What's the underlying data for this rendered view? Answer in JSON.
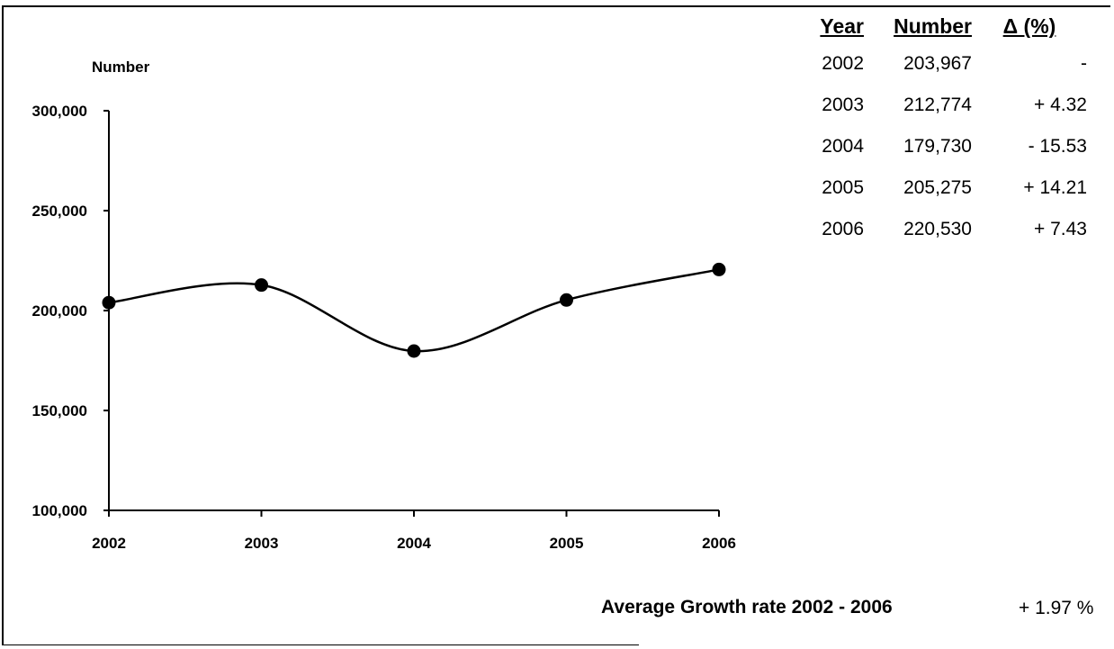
{
  "chart_data": {
    "type": "line",
    "ylabel": "Number",
    "xlabel": "",
    "title": "",
    "x": [
      "2002",
      "2003",
      "2004",
      "2005",
      "2006"
    ],
    "series": [
      {
        "values": [
          203967,
          212774,
          179730,
          205275,
          220530
        ]
      }
    ],
    "ylim": [
      100000,
      300000
    ],
    "yticks": [
      100000,
      150000,
      200000,
      250000,
      300000
    ],
    "ytick_labels": [
      "100,000",
      "150,000",
      "200,000",
      "250,000",
      "300,000"
    ],
    "smooth": true,
    "grid": false,
    "legend": "none",
    "color": "#000000"
  },
  "table": {
    "headers": {
      "year": "Year",
      "number": "Number",
      "delta": "Δ (%)"
    },
    "rows": [
      {
        "year": "2002",
        "number": "203,967",
        "delta": "-"
      },
      {
        "year": "2003",
        "number": "212,774",
        "delta": "+ 4.32"
      },
      {
        "year": "2004",
        "number": "179,730",
        "delta": "- 15.53"
      },
      {
        "year": "2005",
        "number": "205,275",
        "delta": "+ 14.21"
      },
      {
        "year": "2006",
        "number": "220,530",
        "delta": "+ 7.43"
      }
    ]
  },
  "average": {
    "label": "Average Growth rate 2002 - 2006",
    "value": "+ 1.97 %"
  }
}
